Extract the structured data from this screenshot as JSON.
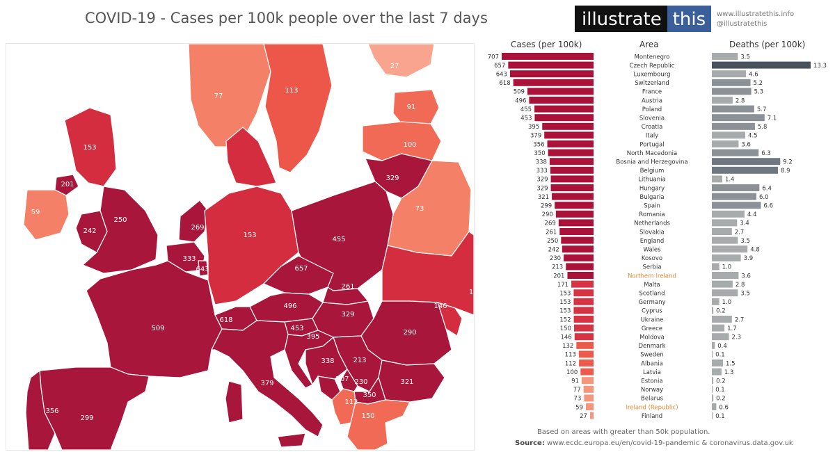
{
  "title": "COVID-19 - Cases per 100k people over the last 7 days",
  "brand": {
    "part1": "illustrate",
    "part2": "this",
    "website": "www.illustratethis.info",
    "handle": "@illustratethis"
  },
  "colors": {
    "cases_high": "#aa1239",
    "cases_mid": "#d63344",
    "cases_low": "#ec5a4b",
    "cases_lowest": "#f5967c",
    "deaths_bar": "#a8abac",
    "deaths_dark": "#48505c",
    "highlight_text": "#e8882f"
  },
  "headers": {
    "cases": "Cases (per 100k)",
    "area": "Area",
    "deaths": "Deaths (per 100k)"
  },
  "footnote": "Based on areas with greater than 50k population.",
  "source": {
    "label": "Source:",
    "text": "www.ecdc.europa.eu/en/covid-19-pandemic & coronavirus.data.gov.uk"
  },
  "map_labels": [
    "27",
    "77",
    "113",
    "91",
    "100",
    "153",
    "201",
    "59",
    "250",
    "242",
    "269",
    "333",
    "643",
    "153",
    "329",
    "73",
    "455",
    "657",
    "261",
    "496",
    "509",
    "618",
    "329",
    "146",
    "1",
    "453",
    "395",
    "290",
    "338",
    "213",
    "707",
    "230",
    "350",
    "321",
    "112",
    "150",
    "379",
    "356",
    "299"
  ],
  "chart_data": {
    "type": "bar",
    "title": "COVID-19 - Cases per 100k people over the last 7 days",
    "xlabel": "",
    "ylabel": "Area",
    "categories": [
      "Montenegro",
      "Czech Republic",
      "Luxembourg",
      "Switzerland",
      "France",
      "Austria",
      "Poland",
      "Slovenia",
      "Croatia",
      "Italy",
      "Portugal",
      "North Macedonia",
      "Bosnia and Herzegovina",
      "Belgium",
      "Lithuania",
      "Hungary",
      "Bulgaria",
      "Spain",
      "Romania",
      "Netherlands",
      "Slovakia",
      "England",
      "Wales",
      "Kosovo",
      "Serbia",
      "Northern Ireland",
      "Malta",
      "Scotland",
      "Germany",
      "Cyprus",
      "Ukraine",
      "Greece",
      "Moldova",
      "Denmark",
      "Sweden",
      "Albania",
      "Latvia",
      "Estonia",
      "Norway",
      "Belarus",
      "Ireland (Republic)",
      "Finland"
    ],
    "series": [
      {
        "name": "Cases (per 100k)",
        "values": [
          707,
          657,
          643,
          618,
          509,
          496,
          455,
          453,
          395,
          379,
          356,
          350,
          338,
          333,
          329,
          329,
          321,
          299,
          290,
          269,
          261,
          250,
          242,
          230,
          213,
          201,
          171,
          153,
          153,
          153,
          152,
          150,
          146,
          132,
          113,
          112,
          100,
          91,
          77,
          73,
          59,
          27
        ]
      },
      {
        "name": "Deaths (per 100k)",
        "values": [
          3.5,
          13.3,
          4.6,
          5.2,
          5.3,
          2.8,
          5.7,
          7.1,
          5.8,
          4.5,
          3.6,
          6.3,
          9.2,
          8.9,
          1.4,
          6.4,
          6.0,
          6.6,
          4.4,
          3.4,
          2.7,
          3.5,
          4.8,
          3.9,
          1.0,
          3.6,
          2.8,
          3.5,
          1.0,
          0.2,
          2.7,
          1.7,
          2.3,
          0.4,
          0.1,
          1.5,
          1.3,
          0.2,
          0.1,
          0.2,
          0.6,
          0.1
        ]
      }
    ],
    "death_labels": [
      "3.5",
      "13.3",
      "4.6",
      "5.2",
      "5.3",
      "2.8",
      "5.7",
      "7.1",
      "5.8",
      "4.5",
      "3.6",
      "6.3",
      "9.2",
      "8.9",
      "1.4",
      "6.4",
      "6.0",
      "6.6",
      "4.4",
      "3.4",
      "2.7",
      "3.5",
      "4.8",
      "3.9",
      "1.0",
      "3.6",
      "2.8",
      "3.5",
      "1.0",
      "0.2",
      "2.7",
      "1.7",
      "2.3",
      "0.4",
      "0.1",
      "1.5",
      "1.3",
      "0.2",
      "0.1",
      "0.2",
      "0.6",
      "0.1"
    ],
    "highlighted_areas": [
      "Northern Ireland",
      "Ireland (Republic)"
    ],
    "cases_range": [
      0,
      707
    ],
    "deaths_range": [
      0,
      13.3
    ]
  }
}
